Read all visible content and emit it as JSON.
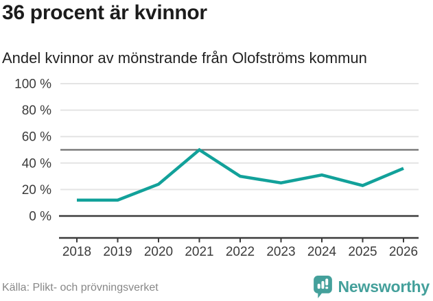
{
  "header": {
    "title": "36 procent är kvinnor",
    "subtitle": "Andel kvinnor av mönstrande från Olofströms kommun"
  },
  "chart_data": {
    "type": "line",
    "title": "36 procent är kvinnor",
    "subtitle": "Andel kvinnor av mönstrande från Olofströms kommun",
    "categories": [
      "2018",
      "2019",
      "2020",
      "2021",
      "2022",
      "2023",
      "2024",
      "2025",
      "2026"
    ],
    "series": [
      {
        "name": "Andel kvinnor av mönstrande",
        "values": [
          12,
          12,
          24,
          50,
          30,
          25,
          31,
          23,
          36
        ]
      }
    ],
    "unit": "%",
    "ylim": [
      0,
      100
    ],
    "yticks": [
      0,
      20,
      40,
      60,
      80,
      100
    ],
    "ytick_labels": [
      "0 %",
      "20 %",
      "40 %",
      "60 %",
      "80 %",
      "100 %"
    ],
    "reference_line": 50,
    "grid": "horizontal",
    "legend": "none"
  },
  "footer": {
    "source": "Källa: Plikt- och prövningsverket",
    "brand": "Newsworthy"
  },
  "colors": {
    "accent": "#12a19a",
    "brand": "#44a09b",
    "grid": "#e4e4e4",
    "reference": "#6f6f6f",
    "axis": "#3a3a3a",
    "tick_text": "#3b3b3b"
  }
}
